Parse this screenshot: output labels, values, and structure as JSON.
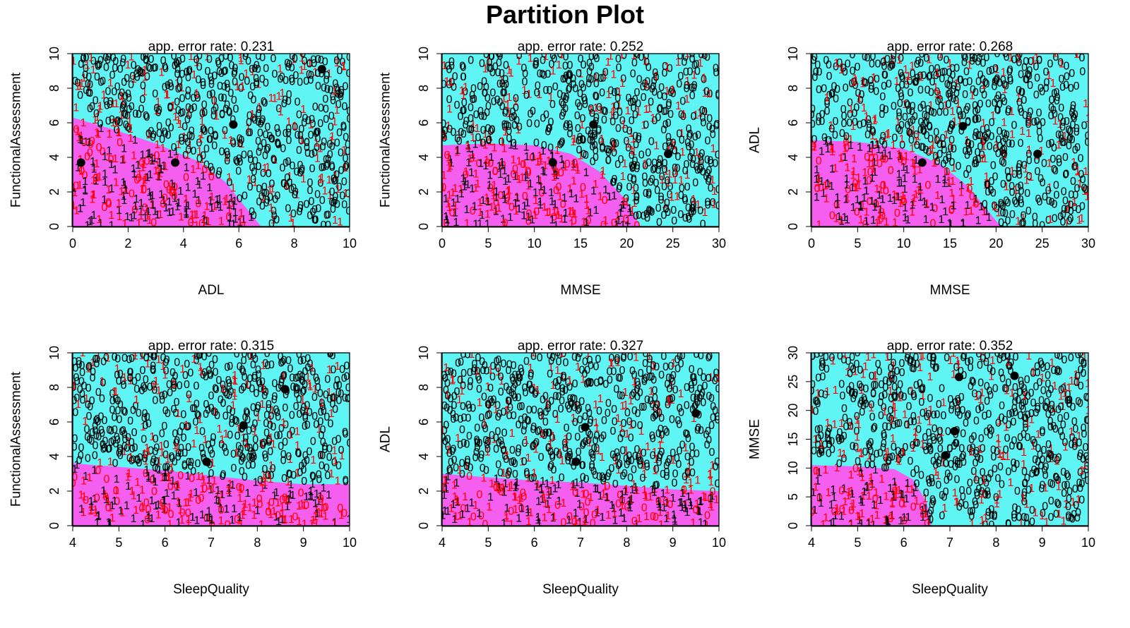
{
  "title": "Partition Plot",
  "colors": {
    "region_0": "#5ff5f5",
    "region_1": "#f55ff0",
    "class_0_label": "#000000",
    "class_1_label": "#ff0000",
    "centroid": "#000000"
  },
  "point_labels": [
    "0",
    "1"
  ],
  "chart_data": [
    {
      "type": "scatter",
      "subtitle": "app. error rate: 0.231",
      "xlabel": "ADL",
      "ylabel": "FunctionalAssessment",
      "xlim": [
        0,
        10
      ],
      "ylim": [
        0,
        10
      ],
      "xticks": [
        0,
        2,
        4,
        6,
        8,
        10
      ],
      "yticks": [
        0,
        2,
        4,
        6,
        8,
        10
      ],
      "boundary": [
        [
          0,
          6.3
        ],
        [
          1.5,
          5.6
        ],
        [
          3,
          4.8
        ],
        [
          4.5,
          3.8
        ],
        [
          5.5,
          2.6
        ],
        [
          6.2,
          1.2
        ],
        [
          6.8,
          0
        ]
      ],
      "centroids": [
        [
          0.3,
          3.7
        ],
        [
          3.7,
          3.7
        ],
        [
          5.8,
          5.9
        ],
        [
          9.0,
          9.1
        ]
      ]
    },
    {
      "type": "scatter",
      "subtitle": "app. error rate: 0.252",
      "xlabel": "MMSE",
      "ylabel": "FunctionalAssessment",
      "xlim": [
        0,
        30
      ],
      "ylim": [
        0,
        10
      ],
      "xticks": [
        0,
        5,
        10,
        15,
        20,
        25,
        30
      ],
      "yticks": [
        0,
        2,
        4,
        6,
        8,
        10
      ],
      "boundary": [
        [
          0,
          4.7
        ],
        [
          5,
          4.8
        ],
        [
          10,
          4.7
        ],
        [
          14,
          4.2
        ],
        [
          17,
          3.2
        ],
        [
          20,
          1.5
        ],
        [
          21.5,
          0
        ]
      ],
      "centroids": [
        [
          12.0,
          3.7
        ],
        [
          16.4,
          5.9
        ],
        [
          24.5,
          4.2
        ]
      ]
    },
    {
      "type": "scatter",
      "subtitle": "app. error rate: 0.268",
      "xlabel": "MMSE",
      "ylabel": "ADL",
      "xlim": [
        0,
        30
      ],
      "ylim": [
        0,
        10
      ],
      "xticks": [
        0,
        5,
        10,
        15,
        20,
        25,
        30
      ],
      "yticks": [
        0,
        2,
        4,
        6,
        8,
        10
      ],
      "boundary": [
        [
          0,
          5.0
        ],
        [
          5,
          4.9
        ],
        [
          10,
          4.5
        ],
        [
          14,
          3.6
        ],
        [
          17,
          2.3
        ],
        [
          19,
          1.0
        ],
        [
          20.5,
          0
        ]
      ],
      "centroids": [
        [
          12.0,
          3.7
        ],
        [
          16.4,
          5.8
        ],
        [
          24.5,
          4.2
        ]
      ]
    },
    {
      "type": "scatter",
      "subtitle": "app. error rate: 0.315",
      "xlabel": "SleepQuality",
      "ylabel": "FunctionalAssessment",
      "xlim": [
        4,
        10
      ],
      "ylim": [
        0,
        10
      ],
      "xticks": [
        4,
        5,
        6,
        7,
        8,
        9,
        10
      ],
      "yticks": [
        0,
        2,
        4,
        6,
        8,
        10
      ],
      "boundary": [
        [
          4,
          3.6
        ],
        [
          5,
          3.4
        ],
        [
          6,
          3.2
        ],
        [
          7,
          2.9
        ],
        [
          8,
          2.6
        ],
        [
          9,
          2.4
        ],
        [
          10,
          2.4
        ]
      ],
      "centroids": [
        [
          6.9,
          3.7
        ],
        [
          7.7,
          5.8
        ],
        [
          8.6,
          7.9
        ]
      ]
    },
    {
      "type": "scatter",
      "subtitle": "app. error rate: 0.327",
      "xlabel": "SleepQuality",
      "ylabel": "ADL",
      "xlim": [
        4,
        10
      ],
      "ylim": [
        0,
        10
      ],
      "xticks": [
        4,
        5,
        6,
        7,
        8,
        9,
        10
      ],
      "yticks": [
        0,
        2,
        4,
        6,
        8,
        10
      ],
      "boundary": [
        [
          4,
          3.0
        ],
        [
          5,
          2.8
        ],
        [
          6,
          2.6
        ],
        [
          7,
          2.5
        ],
        [
          8,
          2.3
        ],
        [
          9,
          2.1
        ],
        [
          10,
          2.0
        ]
      ],
      "centroids": [
        [
          6.9,
          3.7
        ],
        [
          7.1,
          5.7
        ],
        [
          9.5,
          6.5
        ]
      ]
    },
    {
      "type": "scatter",
      "subtitle": "app. error rate: 0.352",
      "xlabel": "SleepQuality",
      "ylabel": "MMSE",
      "xlim": [
        4,
        10
      ],
      "ylim": [
        0,
        30
      ],
      "xticks": [
        4,
        5,
        6,
        7,
        8,
        9,
        10
      ],
      "yticks": [
        0,
        5,
        10,
        15,
        20,
        25,
        30
      ],
      "boundary": [
        [
          4,
          10.5
        ],
        [
          5,
          10.3
        ],
        [
          5.8,
          9.8
        ],
        [
          6.2,
          8.0
        ],
        [
          6.5,
          4.0
        ],
        [
          6.6,
          0
        ]
      ],
      "centroids": [
        [
          6.9,
          12.2
        ],
        [
          7.1,
          16.4
        ],
        [
          7.2,
          25.8
        ],
        [
          8.4,
          26.0
        ]
      ]
    }
  ]
}
